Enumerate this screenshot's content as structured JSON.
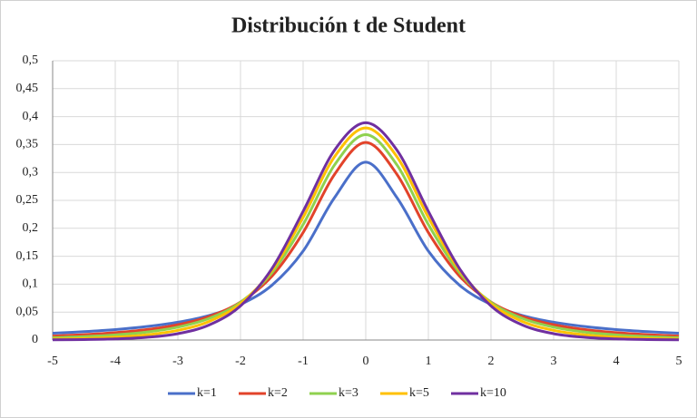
{
  "chart_data": {
    "type": "line",
    "title": "Distribución t de Student",
    "x": [
      -5,
      -4.5,
      -4,
      -3.5,
      -3,
      -2.5,
      -2,
      -1.5,
      -1,
      -0.5,
      0,
      0.5,
      1,
      1.5,
      2,
      2.5,
      3,
      3.5,
      4,
      4.5,
      5
    ],
    "series": [
      {
        "name": "k=1",
        "color": "#4a6fc9",
        "values": [
          0.0122,
          0.015,
          0.0187,
          0.0241,
          0.0318,
          0.0439,
          0.0637,
          0.0979,
          0.1592,
          0.2546,
          0.3183,
          0.2546,
          0.1592,
          0.0979,
          0.0637,
          0.0439,
          0.0318,
          0.0241,
          0.0187,
          0.015,
          0.0122
        ]
      },
      {
        "name": "k=2",
        "color": "#e2432a",
        "values": [
          0.0071,
          0.0095,
          0.0131,
          0.0186,
          0.0274,
          0.0422,
          0.068,
          0.1141,
          0.1925,
          0.2963,
          0.3536,
          0.2963,
          0.1925,
          0.1141,
          0.068,
          0.0422,
          0.0274,
          0.0186,
          0.0131,
          0.0095,
          0.0071
        ]
      },
      {
        "name": "k=3",
        "color": "#8fd14f",
        "values": [
          0.0042,
          0.0061,
          0.0092,
          0.0142,
          0.023,
          0.0387,
          0.0675,
          0.12,
          0.2067,
          0.3132,
          0.3676,
          0.3132,
          0.2067,
          0.12,
          0.0675,
          0.0387,
          0.023,
          0.0142,
          0.0092,
          0.0061,
          0.0042
        ]
      },
      {
        "name": "k=5",
        "color": "#ffc000",
        "values": [
          0.0018,
          0.0029,
          0.0051,
          0.0092,
          0.0173,
          0.0333,
          0.0651,
          0.1245,
          0.2197,
          0.3279,
          0.3796,
          0.3279,
          0.2197,
          0.1245,
          0.0651,
          0.0333,
          0.0173,
          0.0092,
          0.0051,
          0.0029,
          0.0018
        ]
      },
      {
        "name": "k=10",
        "color": "#7030a0",
        "values": [
          0.0004,
          0.0009,
          0.002,
          0.0048,
          0.0114,
          0.0269,
          0.0611,
          0.1275,
          0.2304,
          0.3397,
          0.3891,
          0.3397,
          0.2304,
          0.1275,
          0.0611,
          0.0269,
          0.0114,
          0.0048,
          0.002,
          0.0009,
          0.0004
        ]
      }
    ],
    "xlim": [
      -5,
      5
    ],
    "xticks": [
      -5,
      -4,
      -3,
      -2,
      -1,
      0,
      1,
      2,
      3,
      4,
      5
    ],
    "ylim": [
      0,
      0.5
    ],
    "yticks": [
      0,
      {
        "value": 0.05,
        "label": "0,05"
      },
      {
        "value": 0.1,
        "label": "0,1"
      },
      {
        "value": 0.15,
        "label": "0,15"
      },
      {
        "value": 0.2,
        "label": "0,2"
      },
      {
        "value": 0.25,
        "label": "0,25"
      },
      {
        "value": 0.3,
        "label": "0,3"
      },
      {
        "value": 0.35,
        "label": "0,35"
      },
      {
        "value": 0.4,
        "label": "0,4"
      },
      {
        "value": 0.45,
        "label": "0,45"
      },
      {
        "value": 0.5,
        "label": "0,5"
      }
    ],
    "grid": true,
    "legend": "bottom"
  }
}
